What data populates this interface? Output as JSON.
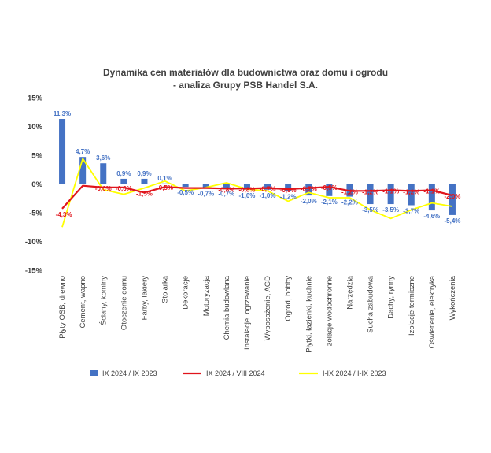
{
  "chart_data": {
    "type": "bar",
    "title_lines": [
      "Dynamika cen materiałów dla budownictwa oraz domu i ogrodu",
      "- analiza Grupy PSB Handel S.A."
    ],
    "categories": [
      "Płyty OSB, drewno",
      "Cement, wapno",
      "Ściany, kominy",
      "Otoczenie domu",
      "Farby, lakiery",
      "Stolarka",
      "Dekoracje",
      "Motoryzacja",
      "Chemia budowlana",
      "Instalacje, ogrzewanie",
      "Wyposażenie, AGD",
      "Ogród, hobby",
      "Płytki, łazienki, kuchnie",
      "Izolacje wodochronne",
      "Narzędzia",
      "Sucha zabudowa",
      "Dachy, rynny",
      "Izolacje termiczne",
      "Oświetlenie, elektryka",
      "Wykończenia"
    ],
    "ylim": [
      -15,
      15
    ],
    "yticks": [
      15,
      10,
      5,
      0,
      -5,
      -10,
      -15
    ],
    "ytick_labels": [
      "15%",
      "10%",
      "5%",
      "0%",
      "-5%",
      "-10%",
      "-15%"
    ],
    "grid": false,
    "legend_position": "bottom",
    "series": [
      {
        "name": "IX 2024 / IX 2023",
        "kind": "bar",
        "color": "#4472c4",
        "values": [
          11.3,
          4.7,
          3.6,
          0.9,
          0.9,
          0.1,
          -0.5,
          -0.7,
          -0.7,
          -1.0,
          -1.0,
          -1.2,
          -2.0,
          -2.1,
          -2.2,
          -3.5,
          -3.5,
          -3.7,
          -4.6,
          -5.4
        ],
        "labels": [
          "11,3%",
          "4,7%",
          "3,6%",
          "0,9%",
          "0,9%",
          "0,1%",
          "-0,5%",
          "-0,7%",
          "-0,7%",
          "-1,0%",
          "-1,0%",
          "-1,2%",
          "-2,0%",
          "-2,1%",
          "-2,2%",
          "-3,5%",
          "-3,5%",
          "-3,7%",
          "-4,6%",
          "-5,4%"
        ]
      },
      {
        "name": "IX 2024 / VIII 2024",
        "kind": "line",
        "color": "#e0141c",
        "values": [
          -4.3,
          -0.3,
          -0.6,
          -0.6,
          -1.5,
          -0.5,
          -0.7,
          -0.7,
          -0.8,
          -0.8,
          -0.7,
          -0.9,
          -0.7,
          -0.5,
          -1.2,
          -1.2,
          -1.1,
          -1.2,
          -1.1,
          -2.0
        ],
        "labels": [
          "-4,3%",
          "",
          "-0,6%",
          "-0,6%",
          "-1,5%",
          "-0,5%",
          "",
          "",
          "-0,8%",
          "-0,8%",
          "-0,7%",
          "-0,9%",
          "-0,7%",
          "-0,5%",
          "-1,2%",
          "-1,2%",
          "-1,1%",
          "-1,2%",
          "-1,1%",
          "-2,0%"
        ]
      },
      {
        "name": "I-IX 2024 / I-IX 2023",
        "kind": "line",
        "color": "#ffff00",
        "values": [
          -7.5,
          4.4,
          -1.0,
          -1.8,
          -0.7,
          0.5,
          -1.2,
          -0.6,
          0.2,
          -0.9,
          -1.2,
          -3.0,
          -1.5,
          -2.4,
          -2.4,
          -4.5,
          -6.0,
          -4.5,
          -3.3,
          -3.9
        ],
        "labels": []
      }
    ]
  }
}
